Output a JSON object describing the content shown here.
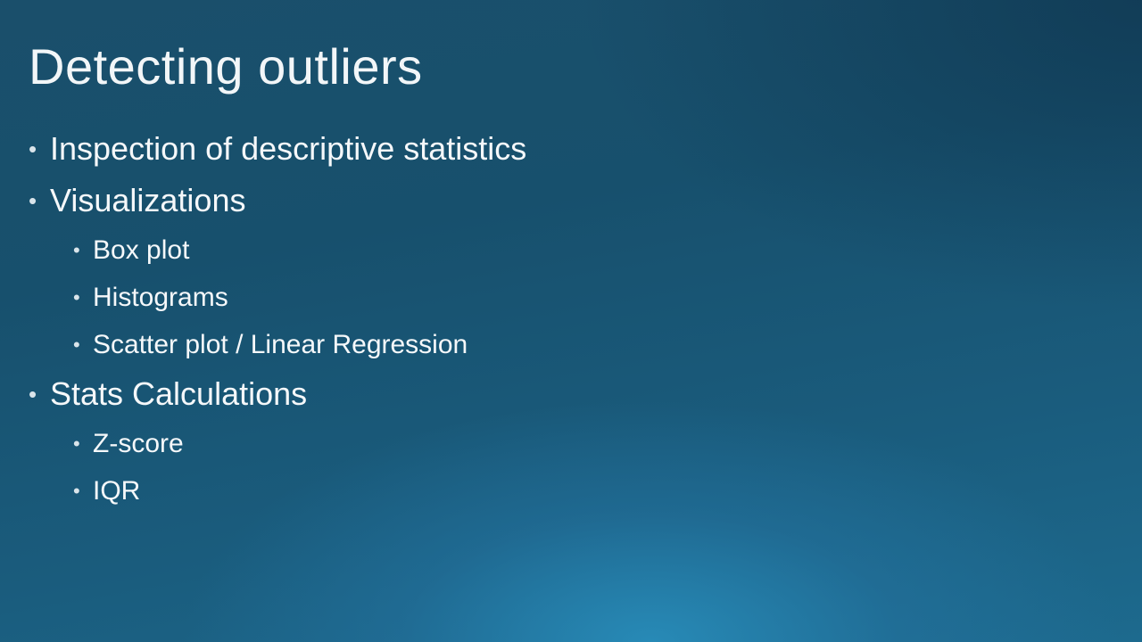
{
  "slide": {
    "title": "Detecting outliers",
    "bullets": [
      {
        "level": 1,
        "text": "Inspection of descriptive statistics"
      },
      {
        "level": 1,
        "text": "Visualizations"
      },
      {
        "level": 2,
        "text": "Box plot"
      },
      {
        "level": 2,
        "text": "Histograms"
      },
      {
        "level": 2,
        "text": "Scatter plot / Linear Regression"
      },
      {
        "level": 1,
        "text": "Stats Calculations"
      },
      {
        "level": 2,
        "text": "Z-score"
      },
      {
        "level": 2,
        "text": "IQR"
      }
    ],
    "bullet_glyph": "•"
  }
}
